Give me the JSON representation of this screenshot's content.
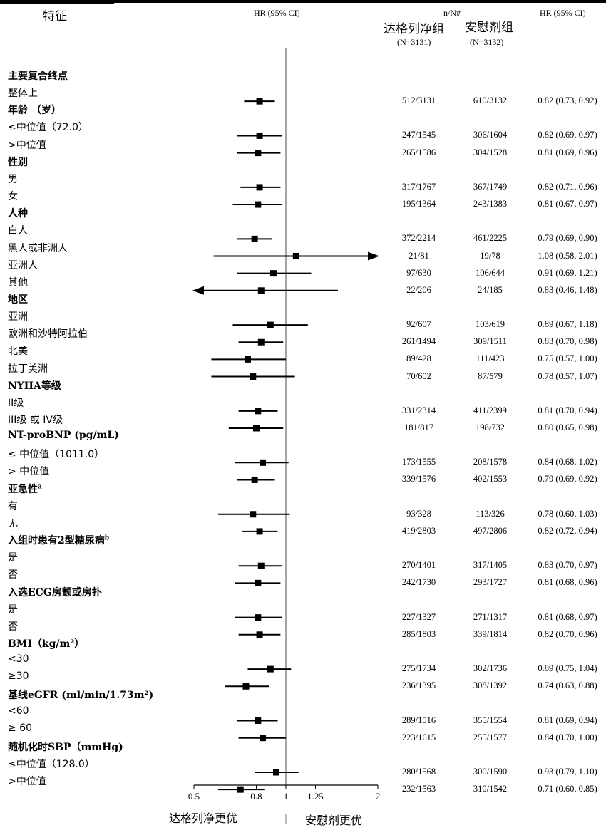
{
  "header": {
    "feature": "特征",
    "hr_left": "HR (95% CI)",
    "nN": "n/N#",
    "hr_right": "HR (95% CI)",
    "drug": "达格列净组",
    "drug_n": "(N=3131)",
    "placebo": "安慰剂组",
    "placebo_n": "(N=3132)"
  },
  "footer": {
    "favors_drug": "达格列净更优",
    "favors_placebo": "安慰剂更优"
  },
  "chart_data": {
    "type": "forest",
    "xscale": "log",
    "xlim": [
      0.5,
      2
    ],
    "xticks": [
      0.5,
      0.8,
      1,
      1.25,
      2
    ],
    "xtick_labels": [
      "0.5",
      "0.8",
      "1",
      "1.25",
      "2"
    ],
    "reference_line": 1,
    "rows": [
      {
        "label": "主要复合终点",
        "heading": true
      },
      {
        "label": "整体上",
        "drug": "512/3131",
        "placebo": "610/3132",
        "hr": 0.82,
        "lo": 0.73,
        "hi": 0.92,
        "hr_text": "0.82 (0.73, 0.92)"
      },
      {
        "label": "年龄 （岁）",
        "heading": true
      },
      {
        "label": "≤中位值（72.0）",
        "drug": "247/1545",
        "placebo": "306/1604",
        "hr": 0.82,
        "lo": 0.69,
        "hi": 0.97,
        "hr_text": "0.82 (0.69, 0.97)"
      },
      {
        "label": ">中位值",
        "drug": "265/1586",
        "placebo": "304/1528",
        "hr": 0.81,
        "lo": 0.69,
        "hi": 0.96,
        "hr_text": "0.81 (0.69, 0.96)"
      },
      {
        "label": "性别",
        "heading": true
      },
      {
        "label": "男",
        "drug": "317/1767",
        "placebo": "367/1749",
        "hr": 0.82,
        "lo": 0.71,
        "hi": 0.96,
        "hr_text": "0.82 (0.71, 0.96)"
      },
      {
        "label": "女",
        "drug": "195/1364",
        "placebo": "243/1383",
        "hr": 0.81,
        "lo": 0.67,
        "hi": 0.97,
        "hr_text": "0.81 (0.67, 0.97)"
      },
      {
        "label": "人种",
        "heading": true
      },
      {
        "label": "白人",
        "drug": "372/2214",
        "placebo": "461/2225",
        "hr": 0.79,
        "lo": 0.69,
        "hi": 0.9,
        "hr_text": "0.79 (0.69, 0.90)"
      },
      {
        "label": "黑人或非洲人",
        "drug": "21/81",
        "placebo": "19/78",
        "hr": 1.08,
        "lo": 0.58,
        "hi": 2.01,
        "hr_text": "1.08 (0.58, 2.01)",
        "arrow_right": true
      },
      {
        "label": "亚洲人",
        "drug": "97/630",
        "placebo": "106/644",
        "hr": 0.91,
        "lo": 0.69,
        "hi": 1.21,
        "hr_text": "0.91 (0.69, 1.21)"
      },
      {
        "label": "其他",
        "drug": "22/206",
        "placebo": "24/185",
        "hr": 0.83,
        "lo": 0.46,
        "hi": 1.48,
        "hr_text": "0.83 (0.46, 1.48)",
        "arrow_left": true
      },
      {
        "label": "地区",
        "heading": true
      },
      {
        "label": "亚洲",
        "drug": "92/607",
        "placebo": "103/619",
        "hr": 0.89,
        "lo": 0.67,
        "hi": 1.18,
        "hr_text": "0.89 (0.67, 1.18)"
      },
      {
        "label": "欧洲和沙特阿拉伯",
        "drug": "261/1494",
        "placebo": "309/1511",
        "hr": 0.83,
        "lo": 0.7,
        "hi": 0.98,
        "hr_text": "0.83 (0.70, 0.98)"
      },
      {
        "label": "北美",
        "drug": "89/428",
        "placebo": "111/423",
        "hr": 0.75,
        "lo": 0.57,
        "hi": 1.0,
        "hr_text": "0.75 (0.57, 1.00)"
      },
      {
        "label": "拉丁美洲",
        "drug": "70/602",
        "placebo": "87/579",
        "hr": 0.78,
        "lo": 0.57,
        "hi": 1.07,
        "hr_text": "0.78 (0.57, 1.07)"
      },
      {
        "label": "NYHA等级",
        "heading": true
      },
      {
        "label": "II级",
        "drug": "331/2314",
        "placebo": "411/2399",
        "hr": 0.81,
        "lo": 0.7,
        "hi": 0.94,
        "hr_text": "0.81 (0.70, 0.94)"
      },
      {
        "label": "III级 或 IV级",
        "drug": "181/817",
        "placebo": "198/732",
        "hr": 0.8,
        "lo": 0.65,
        "hi": 0.98,
        "hr_text": "0.80 (0.65, 0.98)"
      },
      {
        "label": "NT-proBNP (pg/mL)",
        "heading": true
      },
      {
        "label": "≤ 中位值（1011.0）",
        "drug": "173/1555",
        "placebo": "208/1578",
        "hr": 0.84,
        "lo": 0.68,
        "hi": 1.02,
        "hr_text": "0.84 (0.68, 1.02)"
      },
      {
        "label": "> 中位值",
        "drug": "339/1576",
        "placebo": "402/1553",
        "hr": 0.79,
        "lo": 0.69,
        "hi": 0.92,
        "hr_text": "0.79 (0.69, 0.92)"
      },
      {
        "label": "亚急性",
        "sup": "a",
        "heading": true
      },
      {
        "label": "有",
        "drug": "93/328",
        "placebo": "113/326",
        "hr": 0.78,
        "lo": 0.6,
        "hi": 1.03,
        "hr_text": "0.78 (0.60, 1.03)"
      },
      {
        "label": "无",
        "drug": "419/2803",
        "placebo": "497/2806",
        "hr": 0.82,
        "lo": 0.72,
        "hi": 0.94,
        "hr_text": "0.82 (0.72, 0.94)"
      },
      {
        "label": "入组时患有2型糖尿病",
        "sup": "b",
        "heading": true
      },
      {
        "label": "是",
        "drug": "270/1401",
        "placebo": "317/1405",
        "hr": 0.83,
        "lo": 0.7,
        "hi": 0.97,
        "hr_text": "0.83 (0.70, 0.97)"
      },
      {
        "label": "否",
        "drug": "242/1730",
        "placebo": "293/1727",
        "hr": 0.81,
        "lo": 0.68,
        "hi": 0.96,
        "hr_text": "0.81 (0.68, 0.96)"
      },
      {
        "label": "入选ECG房颤或房扑",
        "heading": true
      },
      {
        "label": "是",
        "drug": "227/1327",
        "placebo": "271/1317",
        "hr": 0.81,
        "lo": 0.68,
        "hi": 0.97,
        "hr_text": "0.81 (0.68, 0.97)"
      },
      {
        "label": "否",
        "drug": "285/1803",
        "placebo": "339/1814",
        "hr": 0.82,
        "lo": 0.7,
        "hi": 0.96,
        "hr_text": "0.82 (0.70, 0.96)"
      },
      {
        "label": "BMI（kg/m²）",
        "heading": true
      },
      {
        "label": "<30",
        "drug": "275/1734",
        "placebo": "302/1736",
        "hr": 0.89,
        "lo": 0.75,
        "hi": 1.04,
        "hr_text": "0.89 (0.75, 1.04)"
      },
      {
        "label": "≥30",
        "drug": "236/1395",
        "placebo": "308/1392",
        "hr": 0.74,
        "lo": 0.63,
        "hi": 0.88,
        "hr_text": "0.74 (0.63, 0.88)"
      },
      {
        "label": "基线eGFR (ml/min/1.73m²)",
        "heading": true
      },
      {
        "label": "<60",
        "drug": "289/1516",
        "placebo": "355/1554",
        "hr": 0.81,
        "lo": 0.69,
        "hi": 0.94,
        "hr_text": "0.81 (0.69, 0.94)"
      },
      {
        "label": "≥ 60",
        "drug": "223/1615",
        "placebo": "255/1577",
        "hr": 0.84,
        "lo": 0.7,
        "hi": 1.0,
        "hr_text": "0.84 (0.70, 1.00)"
      },
      {
        "label": "随机化时SBP（mmHg)",
        "heading": true
      },
      {
        "label": "≤中位值（128.0）",
        "drug": "280/1568",
        "placebo": "300/1590",
        "hr": 0.93,
        "lo": 0.79,
        "hi": 1.1,
        "hr_text": "0.93 (0.79, 1.10)"
      },
      {
        "label": ">中位值",
        "drug": "232/1563",
        "placebo": "310/1542",
        "hr": 0.71,
        "lo": 0.6,
        "hi": 0.85,
        "hr_text": "0.71 (0.60, 0.85)"
      }
    ]
  }
}
